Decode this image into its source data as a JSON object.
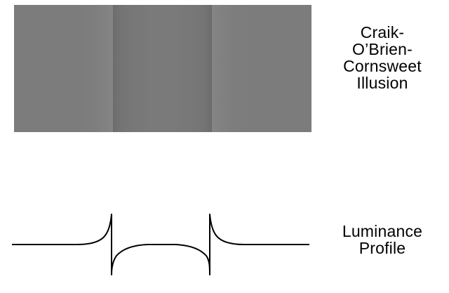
{
  "illusion": {
    "title_lines": [
      "Craik-",
      "O’Brien-",
      "Cornsweet",
      "Illusion"
    ]
  },
  "profile": {
    "title_lines": [
      "Luminance",
      "Profile"
    ]
  }
}
